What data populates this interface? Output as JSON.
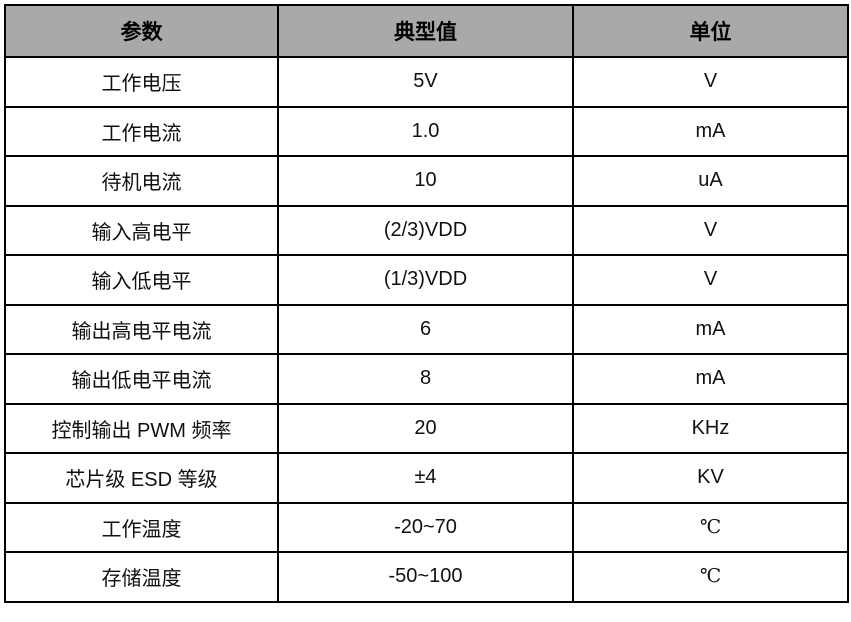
{
  "table": {
    "columns": [
      "参数",
      "典型值",
      "单位"
    ],
    "rows": [
      {
        "param": "工作电压",
        "typical": "5V",
        "unit": "V"
      },
      {
        "param": "工作电流",
        "typical": "1.0",
        "unit": "mA"
      },
      {
        "param": "待机电流",
        "typical": "10",
        "unit": "uA"
      },
      {
        "param": "输入高电平",
        "typical": "(2/3)VDD",
        "unit": "V"
      },
      {
        "param": "输入低电平",
        "typical": "(1/3)VDD",
        "unit": "V"
      },
      {
        "param": "输出高电平电流",
        "typical": "6",
        "unit": "mA"
      },
      {
        "param": "输出低电平电流",
        "typical": "8",
        "unit": "mA"
      },
      {
        "param": "控制输出 PWM 频率",
        "typical": "20",
        "unit": "KHz"
      },
      {
        "param": "芯片级 ESD 等级",
        "typical": "±4",
        "unit": "KV"
      },
      {
        "param": "工作温度",
        "typical": "-20~70",
        "unit": "℃"
      },
      {
        "param": "存储温度",
        "typical": "-50~100",
        "unit": "℃"
      }
    ],
    "colors": {
      "header_bg": "#a9a9a9",
      "border": "#000000",
      "text": "#111111"
    }
  }
}
